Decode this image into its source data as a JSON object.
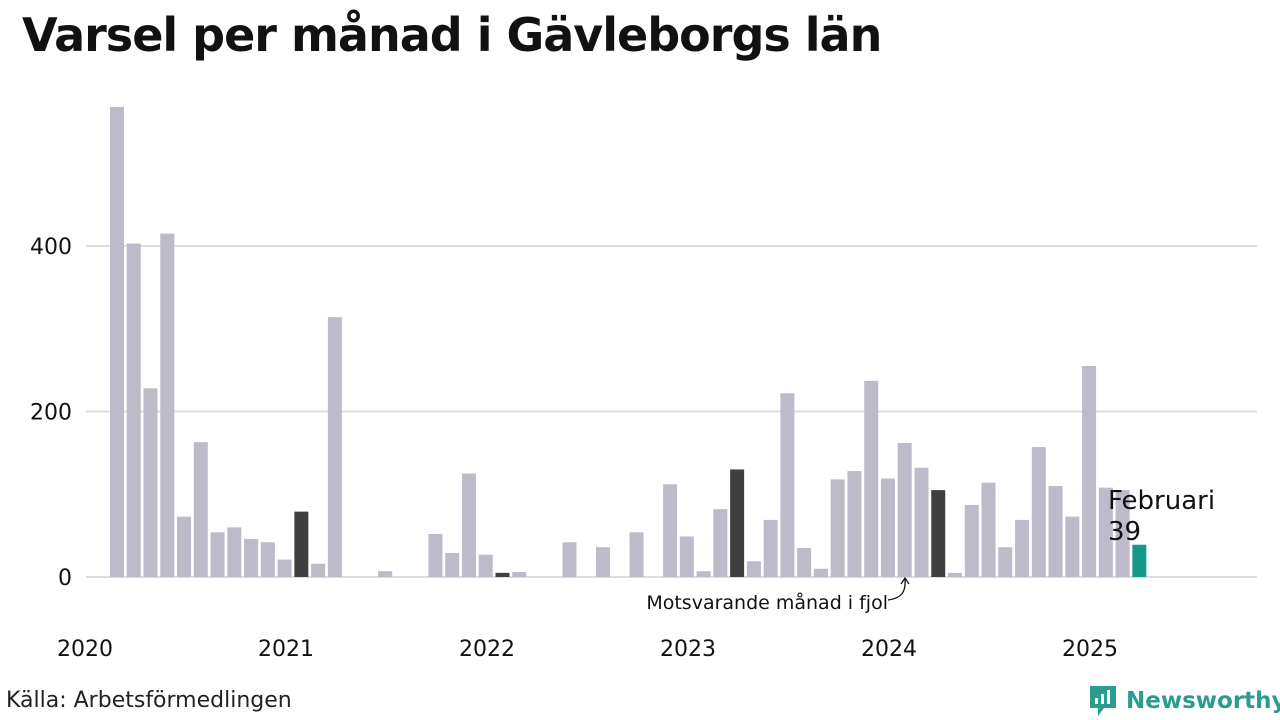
{
  "title": "Varsel per månad i Gävleborgs län",
  "source": "Källa: Arbetsförmedlingen",
  "brand": {
    "name": "Newsworthy",
    "icon": "newsworthy-logo-icon",
    "color": "#2a9d8f"
  },
  "annotation": "Motsvarande månad i fjol",
  "highlight": {
    "label": "Februari",
    "value": "39"
  },
  "colors": {
    "bar": "#bdbac9",
    "comparison": "#404040",
    "current": "#17998a",
    "grid": "#dddddd"
  },
  "chart_data": {
    "type": "bar",
    "xlabel": "",
    "ylabel": "",
    "ylim": [
      0,
      570
    ],
    "yticks": [
      0,
      200,
      400
    ],
    "xticks": [
      "2020",
      "2021",
      "2022",
      "2023",
      "2024",
      "2025"
    ],
    "grid": true,
    "start_month": "2020-03",
    "values": [
      568,
      403,
      228,
      415,
      73,
      163,
      54,
      60,
      46,
      42,
      21,
      79,
      16,
      314,
      0,
      0,
      7,
      0,
      0,
      52,
      29,
      125,
      27,
      5,
      6,
      0,
      0,
      42,
      0,
      36,
      0,
      54,
      0,
      112,
      49,
      7,
      82,
      130,
      19,
      69,
      222,
      35,
      10,
      118,
      128,
      237,
      119,
      162,
      132,
      105,
      5,
      87,
      114,
      36,
      69,
      157,
      110,
      73,
      255,
      108,
      105,
      39
    ],
    "comparison_indices": [
      11,
      23,
      37,
      49
    ],
    "current_index": 61
  }
}
